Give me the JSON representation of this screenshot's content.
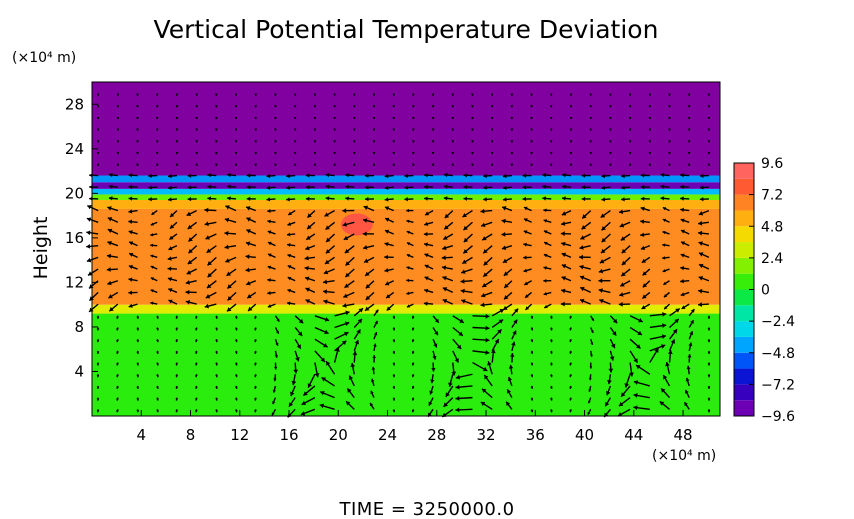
{
  "chart_data": {
    "type": "heatmap",
    "title": "Vertical Potential Temperature Deviation",
    "ylabel": "Height",
    "x_unit": "(×10⁴ m)",
    "y_unit": "(×10⁴ m)",
    "xlim": [
      0,
      51
    ],
    "ylim": [
      0,
      30
    ],
    "x_ticks": [
      4,
      8,
      12,
      16,
      20,
      24,
      28,
      32,
      36,
      40,
      44,
      48
    ],
    "y_ticks": [
      4,
      8,
      12,
      16,
      20,
      24,
      28
    ],
    "colorbar": {
      "min": -9.6,
      "max": 9.6,
      "tick_values": [
        9.6,
        7.2,
        4.8,
        2.4,
        0,
        -2.4,
        -4.8,
        -7.2,
        -9.6
      ],
      "tick_labels": [
        "9.6",
        "7.2",
        "4.8",
        "2.4",
        "0",
        "−2.4",
        "−4.8",
        "−7.2",
        "−9.6"
      ]
    },
    "layers": [
      {
        "y_from": 0,
        "y_to": 9.2,
        "value": 0.4
      },
      {
        "y_from": 9.2,
        "y_to": 10.0,
        "value": 3.4
      },
      {
        "y_from": 10.0,
        "y_to": 18.6,
        "value": 6.3
      },
      {
        "y_from": 18.6,
        "y_to": 19.4,
        "value": 5.4
      },
      {
        "y_from": 19.4,
        "y_to": 19.9,
        "value": 1.5
      },
      {
        "y_from": 19.9,
        "y_to": 20.4,
        "value": -3.8
      },
      {
        "y_from": 20.4,
        "y_to": 21.0,
        "value": -9.0
      },
      {
        "y_from": 21.0,
        "y_to": 21.6,
        "value": -4.5
      },
      {
        "y_from": 21.6,
        "y_to": 30,
        "value": -9.8
      }
    ],
    "warm_spot": {
      "x": 21.5,
      "y": 17.2,
      "value": 8.6
    }
  },
  "footer": {
    "time_label": "TIME  =  3250000.0"
  }
}
